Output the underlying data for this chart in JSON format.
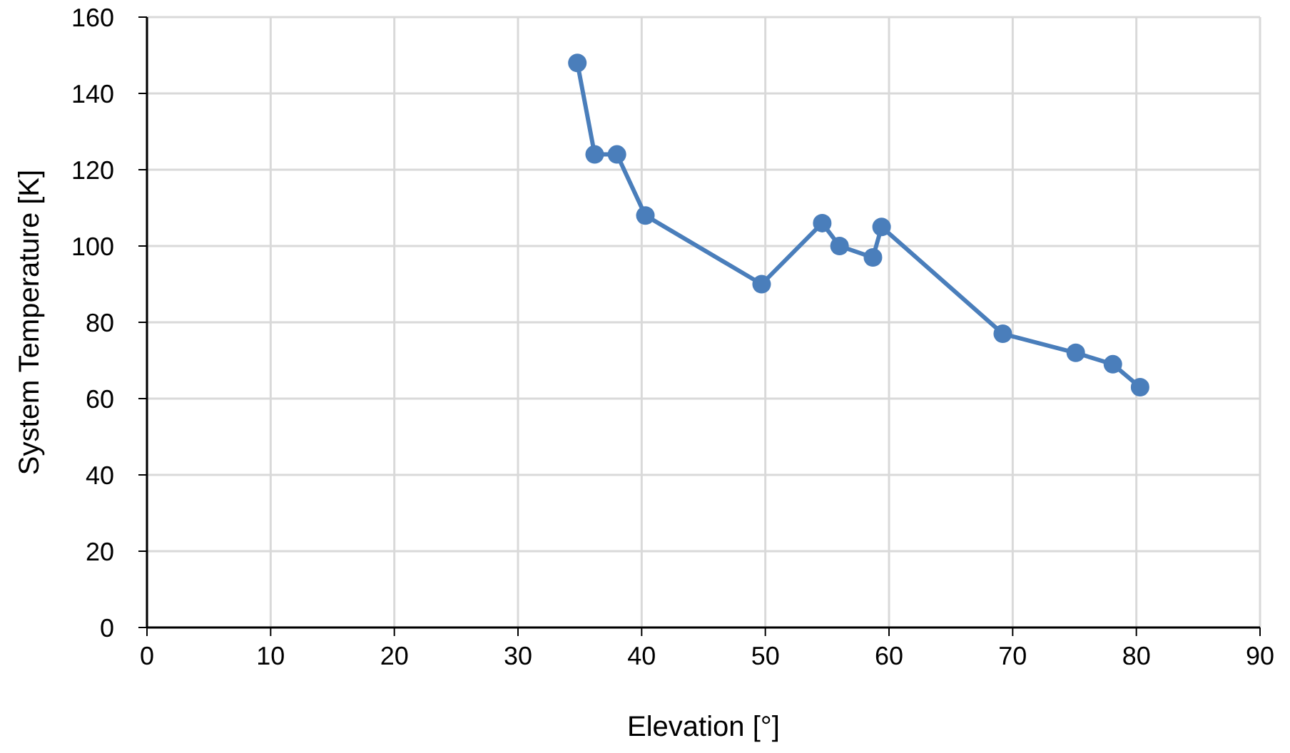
{
  "chart_data": {
    "type": "line",
    "xlabel": "Elevation [°]",
    "ylabel": "System Temperature [K]",
    "x": [
      34.8,
      36.2,
      38.0,
      40.3,
      49.7,
      54.6,
      56.0,
      58.7,
      59.4,
      69.2,
      75.1,
      78.1,
      80.3
    ],
    "series": [
      {
        "color": "#4a7ebb",
        "values": [
          148,
          124,
          124,
          108,
          90,
          106,
          100,
          97,
          105,
          77,
          72,
          69,
          63
        ]
      }
    ],
    "xlim": [
      0,
      90
    ],
    "xticks": [
      0,
      10,
      20,
      30,
      40,
      50,
      60,
      70,
      80,
      90
    ],
    "ylim": [
      0,
      160
    ],
    "yticks": [
      0,
      20,
      40,
      60,
      80,
      100,
      120,
      140,
      160
    ],
    "grid": true,
    "marker": "circle",
    "line_style": "solid"
  }
}
